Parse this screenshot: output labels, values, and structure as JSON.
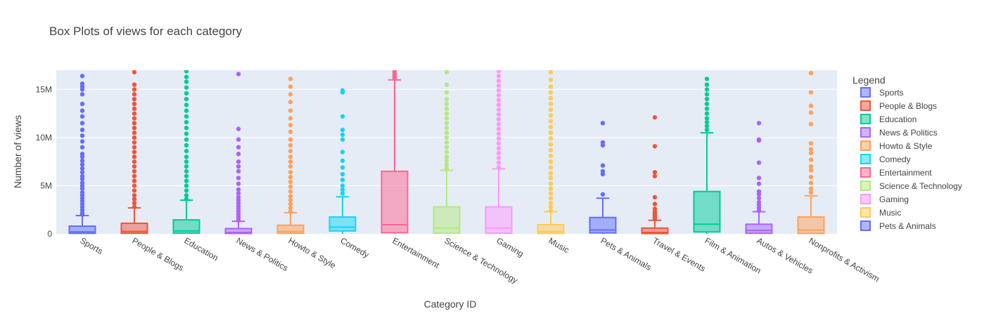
{
  "chart_data": {
    "type": "box",
    "title": "Box Plots of views for each category",
    "xlabel": "Category ID",
    "ylabel": "Number of views",
    "ylim": [
      0,
      17000000
    ],
    "yticks": [
      0,
      5000000,
      10000000,
      15000000
    ],
    "ytick_labels": [
      "0",
      "5M",
      "10M",
      "15M"
    ],
    "grid": true,
    "legend_title": "Legend",
    "legend_position": "right",
    "categories": [
      "Sports",
      "People & Blogs",
      "Education",
      "News & Politics",
      "Howto & Style",
      "Comedy",
      "Entertainment",
      "Science & Technology",
      "Gaming",
      "Music",
      "Pets & Animals",
      "Travel & Events",
      "Film & Animation",
      "Autos & Vehicles",
      "Nonprofits & Activism"
    ],
    "series": [
      {
        "name": "Sports",
        "color": "#636efa",
        "min": 0,
        "q1": 50000,
        "median": 200000,
        "q3": 800000,
        "upper_fence": 1900000,
        "outliers": [
          2000000,
          2200000,
          2500000,
          2800000,
          3100000,
          3400000,
          3700000,
          4000000,
          4300000,
          4700000,
          5000000,
          5300000,
          5700000,
          6000000,
          6400000,
          6800000,
          7200000,
          7600000,
          8000000,
          8300000,
          9000000,
          9600000,
          10200000,
          10800000,
          11500000,
          12200000,
          12800000,
          13500000,
          14500000,
          15000000,
          15300000,
          15600000,
          16400000
        ]
      },
      {
        "name": "People & Blogs",
        "color": "#ef553b",
        "min": 0,
        "q1": 60000,
        "median": 250000,
        "q3": 1100000,
        "upper_fence": 2700000,
        "outliers": [
          2800000,
          3200000,
          3600000,
          4000000,
          4500000,
          5000000,
          5500000,
          6000000,
          6500000,
          7000000,
          7500000,
          8000000,
          8500000,
          9000000,
          9500000,
          10000000,
          10500000,
          11000000,
          11500000,
          12000000,
          12500000,
          13000000,
          13500000,
          14000000,
          14500000,
          15000000,
          15500000,
          16800000
        ]
      },
      {
        "name": "Education",
        "color": "#00cc96",
        "min": 0,
        "q1": 70000,
        "median": 300000,
        "q3": 1450000,
        "upper_fence": 3500000,
        "outliers": [
          3600000,
          4000000,
          4500000,
          5000000,
          5500000,
          6000000,
          6500000,
          7000000,
          7500000,
          8000000,
          8600000,
          9200000,
          9800000,
          10400000,
          11000000,
          11600000,
          12200000,
          12800000,
          13400000,
          14000000,
          14600000,
          15200000,
          15800000,
          16300000,
          16900000
        ]
      },
      {
        "name": "News & Politics",
        "color": "#ab63fa",
        "min": 0,
        "q1": 40000,
        "median": 150000,
        "q3": 550000,
        "upper_fence": 1300000,
        "outliers": [
          1400000,
          1700000,
          2000000,
          2300000,
          2600000,
          2900000,
          3200000,
          3500000,
          3800000,
          4200000,
          4600000,
          5200000,
          5800000,
          6500000,
          7000000,
          7500000,
          8300000,
          9000000,
          9800000,
          10900000,
          16600000
        ]
      },
      {
        "name": "Howto & Style",
        "color": "#ffa15a",
        "min": 0,
        "q1": 60000,
        "median": 250000,
        "q3": 900000,
        "upper_fence": 2200000,
        "outliers": [
          2300000,
          2700000,
          3100000,
          3500000,
          3900000,
          4400000,
          4900000,
          5400000,
          5900000,
          6400000,
          7000000,
          7500000,
          8000000,
          8600000,
          9200000,
          9800000,
          10600000,
          11300000,
          12000000,
          12800000,
          13700000,
          14500000,
          15300000,
          16100000
        ]
      },
      {
        "name": "Comedy",
        "color": "#19d3f3",
        "min": 0,
        "q1": 300000,
        "median": 700000,
        "q3": 1750000,
        "upper_fence": 3850000,
        "outliers": [
          4200000,
          4600000,
          5000000,
          5600000,
          6200000,
          6900000,
          7600000,
          8500000,
          9800000,
          10300000,
          10800000,
          12200000,
          14700000,
          14900000
        ]
      },
      {
        "name": "Entertainment",
        "color": "#ff6692",
        "min": 0,
        "q1": 120000,
        "median": 950000,
        "q3": 6500000,
        "upper_fence": 16000000,
        "outliers": [
          16200000,
          16400000,
          16600000,
          16800000,
          17000000
        ]
      },
      {
        "name": "Science & Technology",
        "color": "#b6e880",
        "min": 0,
        "q1": 70000,
        "median": 600000,
        "q3": 2800000,
        "upper_fence": 6600000,
        "outliers": [
          6800000,
          7200000,
          7600000,
          8000000,
          8500000,
          9000000,
          9500000,
          10000000,
          10500000,
          11000000,
          11500000,
          12000000,
          12500000,
          13000000,
          13500000,
          14000000,
          14700000,
          15500000,
          16800000
        ]
      },
      {
        "name": "Gaming",
        "color": "#ff97ff",
        "min": 0,
        "q1": 70000,
        "median": 600000,
        "q3": 2800000,
        "upper_fence": 6750000,
        "outliers": [
          6900000,
          7400000,
          7900000,
          8400000,
          8900000,
          9400000,
          9900000,
          10400000,
          10900000,
          11400000,
          11900000,
          12400000,
          12900000,
          13400000,
          13900000,
          14400000,
          14900000,
          15400000,
          15900000,
          16400000,
          16900000
        ]
      },
      {
        "name": "Music",
        "color": "#fecb52",
        "min": 0,
        "q1": 50000,
        "median": 250000,
        "q3": 950000,
        "upper_fence": 2300000,
        "outliers": [
          2400000,
          2800000,
          3200000,
          3700000,
          4200000,
          4700000,
          5200000,
          5800000,
          6300000,
          6900000,
          7500000,
          8100000,
          8700000,
          9300000,
          9900000,
          10500000,
          11100000,
          11700000,
          12300000,
          12900000,
          13500000,
          14100000,
          14700000,
          15300000,
          16000000,
          16800000
        ]
      },
      {
        "name": "Pets & Animals",
        "color": "#636efa",
        "min": 0,
        "q1": 100000,
        "median": 400000,
        "q3": 1700000,
        "upper_fence": 3700000,
        "outliers": [
          4100000,
          6200000,
          6500000,
          7100000,
          9200000,
          9500000,
          11500000
        ]
      },
      {
        "name": "Travel & Events",
        "color": "#ef553b",
        "min": 0,
        "q1": 30000,
        "median": 150000,
        "q3": 600000,
        "upper_fence": 1400000,
        "outliers": [
          1500000,
          1700000,
          1900000,
          2100000,
          2300000,
          2600000,
          3100000,
          3800000,
          6000000,
          6400000,
          9100000,
          12100000
        ]
      },
      {
        "name": "Film & Animation",
        "color": "#00cc96",
        "min": 0,
        "q1": 200000,
        "median": 1000000,
        "q3": 4400000,
        "upper_fence": 10500000,
        "outliers": [
          10800000,
          11200000,
          11600000,
          12000000,
          12500000,
          13000000,
          13500000,
          14000000,
          14500000,
          15000000,
          15500000,
          16100000
        ]
      },
      {
        "name": "Autos & Vehicles",
        "color": "#ab63fa",
        "min": 0,
        "q1": 60000,
        "median": 350000,
        "q3": 1000000,
        "upper_fence": 2300000,
        "outliers": [
          2400000,
          2700000,
          3000000,
          3300000,
          3700000,
          4100000,
          4400000,
          5200000,
          5800000,
          7400000,
          9700000,
          9800000,
          11500000
        ]
      },
      {
        "name": "Nonprofits & Activism",
        "color": "#ffa15a",
        "min": 0,
        "q1": 50000,
        "median": 400000,
        "q3": 1750000,
        "upper_fence": 3950000,
        "outliers": [
          4300000,
          4700000,
          5300000,
          5900000,
          6600000,
          7000000,
          7700000,
          8400000,
          8800000,
          9400000,
          11400000,
          12600000,
          13300000,
          14700000,
          16700000
        ]
      }
    ],
    "legend_items": [
      "Sports",
      "People & Blogs",
      "Education",
      "News & Politics",
      "Howto & Style",
      "Comedy",
      "Entertainment",
      "Science & Technology",
      "Gaming",
      "Music",
      "Pets & Animals"
    ]
  }
}
